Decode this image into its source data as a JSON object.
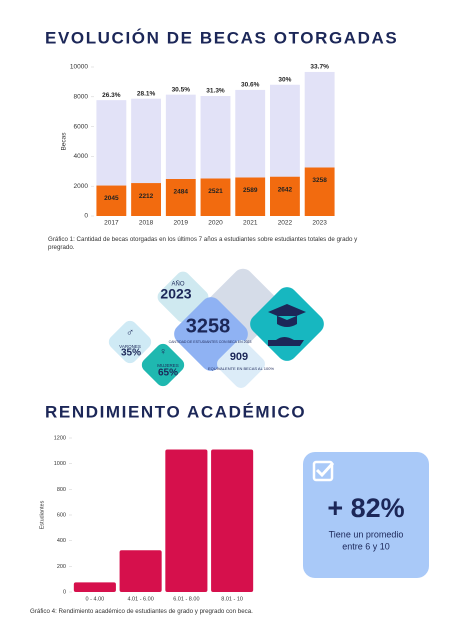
{
  "header": {
    "title": "EVOLUCIÓN DE BECAS OTORGADAS"
  },
  "chart_data": [
    {
      "type": "bar",
      "stacked": true,
      "categories": [
        "2017",
        "2018",
        "2019",
        "2020",
        "2021",
        "2022",
        "2023"
      ],
      "series": [
        {
          "color": "#f26b0f",
          "values": [
            2045,
            2212,
            2484,
            2521,
            2589,
            2642,
            3258
          ],
          "data_labels": true
        },
        {
          "color": "#e2e2f7",
          "values": [
            5731,
            5660,
            5660,
            5533,
            5872,
            6165,
            6410
          ]
        }
      ],
      "top_labels": {
        "values": [
          26.3,
          28.1,
          30.5,
          31.3,
          30.6,
          30,
          33.7
        ],
        "value_labels": [
          "26.3%",
          "28.1%",
          "30.5%",
          "31.3%",
          "30.6%",
          "30%",
          "33.7%"
        ]
      },
      "ylabel": "Becas",
      "ylim": [
        0,
        10000
      ],
      "yticks": [
        0,
        2000,
        4000,
        6000,
        8000,
        10000
      ],
      "grid": false,
      "caption": "Gráfico 1: Cantidad de becas otorgadas en los últimos 7 años a estudiantes sobre estudiantes totales de grado y pregrado."
    },
    {
      "type": "bar",
      "categories": [
        "0 - 4.00",
        "4.01 - 6.00",
        "6.01 - 8.00",
        "8.01 - 10"
      ],
      "values": [
        75,
        325,
        1110,
        1110
      ],
      "color": "#d6104c",
      "ylabel": "Estudiantes",
      "ylim": [
        0,
        1200
      ],
      "yticks": [
        0,
        200,
        400,
        600,
        800,
        1000,
        1200
      ],
      "grid": false,
      "caption": "Gráfico 4: Rendimiento académico de estudiantes de grado y pregrado con beca."
    }
  ],
  "infographic": {
    "year_label": "AÑO",
    "year": "2023",
    "total": "3258",
    "total_text": "CANTIDAD DE ESTUDIANTES CON BECA EN 2023",
    "men_label": "VARONES",
    "men": "35%",
    "women_label": "MUJERES",
    "women": "65%",
    "equiv": "909",
    "equiv_text": "EQUIVALENTE EN BECAS AL 100%"
  },
  "section2": {
    "title": "RENDIMIENTO ACADÉMICO"
  },
  "highlight": {
    "value": "+ 82%",
    "lines": [
      "Tiene un promedio",
      "entre 6 y 10"
    ]
  }
}
